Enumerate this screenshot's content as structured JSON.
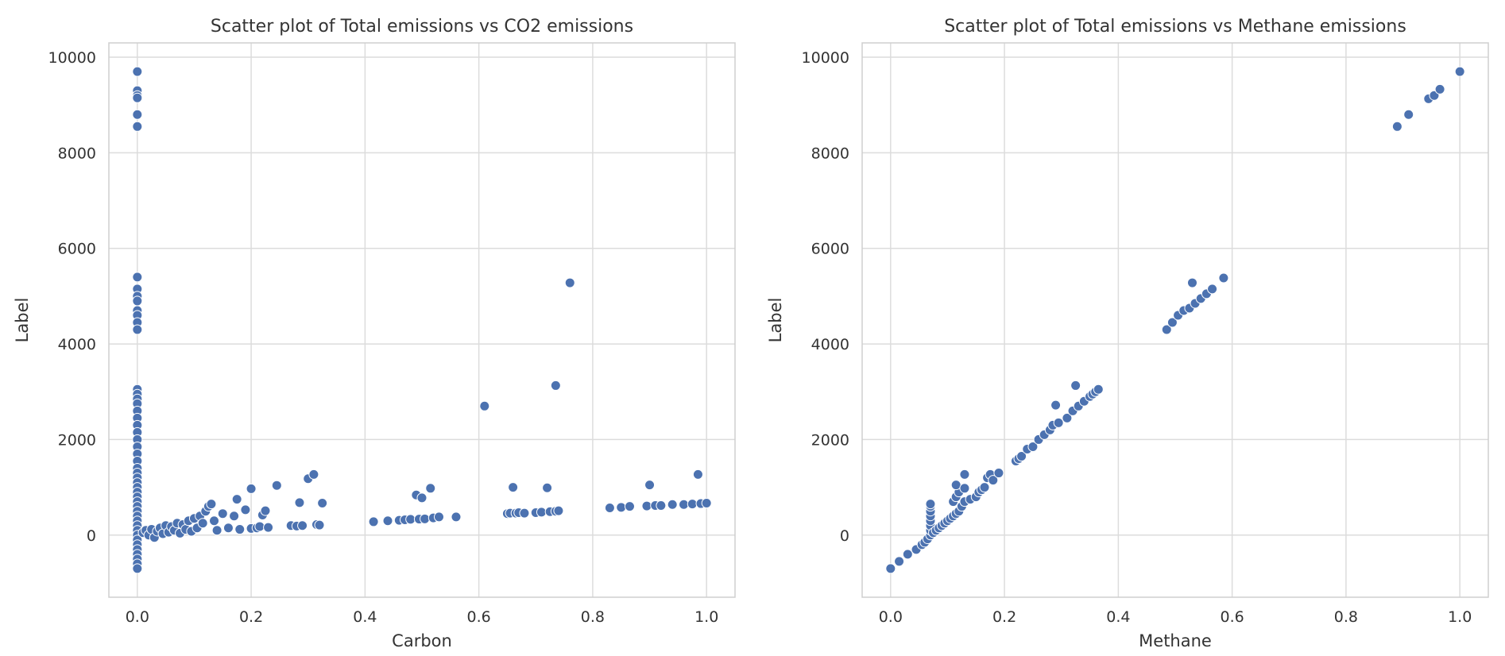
{
  "chart_data": [
    {
      "type": "scatter",
      "title": "Scatter plot of Total emissions vs CO2 emissions",
      "xlabel": "Carbon",
      "ylabel": "Label",
      "xlim": [
        -0.05,
        1.05
      ],
      "ylim": [
        -1300,
        10300
      ],
      "xticks": [
        0.0,
        0.2,
        0.4,
        0.6,
        0.8,
        1.0
      ],
      "xtick_labels": [
        "0.0",
        "0.2",
        "0.4",
        "0.6",
        "0.8",
        "1.0"
      ],
      "yticks": [
        0,
        2000,
        4000,
        6000,
        8000,
        10000
      ],
      "ytick_labels": [
        "0",
        "2000",
        "4000",
        "6000",
        "8000",
        "10000"
      ],
      "grid": true,
      "color": "#4c72b0",
      "points": [
        [
          0.0,
          9700
        ],
        [
          0.0,
          9300
        ],
        [
          0.0,
          9200
        ],
        [
          0.0,
          9150
        ],
        [
          0.0,
          8800
        ],
        [
          0.0,
          8550
        ],
        [
          0.0,
          5400
        ],
        [
          0.0,
          5150
        ],
        [
          0.0,
          5000
        ],
        [
          0.0,
          4900
        ],
        [
          0.0,
          4700
        ],
        [
          0.0,
          4600
        ],
        [
          0.0,
          4450
        ],
        [
          0.0,
          4300
        ],
        [
          0.0,
          3050
        ],
        [
          0.0,
          2950
        ],
        [
          0.0,
          2850
        ],
        [
          0.0,
          2750
        ],
        [
          0.0,
          2600
        ],
        [
          0.0,
          2450
        ],
        [
          0.0,
          2300
        ],
        [
          0.0,
          2150
        ],
        [
          0.0,
          2000
        ],
        [
          0.0,
          1850
        ],
        [
          0.0,
          1700
        ],
        [
          0.0,
          1550
        ],
        [
          0.0,
          1400
        ],
        [
          0.0,
          1300
        ],
        [
          0.0,
          1200
        ],
        [
          0.0,
          1100
        ],
        [
          0.0,
          1000
        ],
        [
          0.0,
          900
        ],
        [
          0.0,
          800
        ],
        [
          0.0,
          700
        ],
        [
          0.0,
          600
        ],
        [
          0.0,
          500
        ],
        [
          0.0,
          400
        ],
        [
          0.0,
          300
        ],
        [
          0.0,
          200
        ],
        [
          0.0,
          100
        ],
        [
          0.0,
          0
        ],
        [
          0.0,
          -100
        ],
        [
          0.0,
          -200
        ],
        [
          0.0,
          -300
        ],
        [
          0.0,
          -400
        ],
        [
          0.0,
          -500
        ],
        [
          0.0,
          -600
        ],
        [
          0.0,
          -700
        ],
        [
          0.01,
          50
        ],
        [
          0.015,
          100
        ],
        [
          0.02,
          0
        ],
        [
          0.025,
          120
        ],
        [
          0.03,
          -50
        ],
        [
          0.035,
          80
        ],
        [
          0.04,
          150
        ],
        [
          0.045,
          30
        ],
        [
          0.05,
          200
        ],
        [
          0.055,
          60
        ],
        [
          0.06,
          180
        ],
        [
          0.065,
          100
        ],
        [
          0.07,
          250
        ],
        [
          0.075,
          40
        ],
        [
          0.08,
          220
        ],
        [
          0.085,
          120
        ],
        [
          0.09,
          300
        ],
        [
          0.095,
          80
        ],
        [
          0.1,
          350
        ],
        [
          0.105,
          150
        ],
        [
          0.11,
          400
        ],
        [
          0.115,
          250
        ],
        [
          0.12,
          500
        ],
        [
          0.125,
          600
        ],
        [
          0.13,
          650
        ],
        [
          0.135,
          300
        ],
        [
          0.14,
          100
        ],
        [
          0.15,
          450
        ],
        [
          0.16,
          150
        ],
        [
          0.17,
          400
        ],
        [
          0.175,
          750
        ],
        [
          0.18,
          120
        ],
        [
          0.19,
          530
        ],
        [
          0.2,
          970
        ],
        [
          0.2,
          140
        ],
        [
          0.21,
          150
        ],
        [
          0.215,
          180
        ],
        [
          0.22,
          420
        ],
        [
          0.225,
          510
        ],
        [
          0.23,
          160
        ],
        [
          0.245,
          1040
        ],
        [
          0.27,
          200
        ],
        [
          0.28,
          190
        ],
        [
          0.285,
          680
        ],
        [
          0.29,
          200
        ],
        [
          0.3,
          1180
        ],
        [
          0.31,
          1270
        ],
        [
          0.315,
          220
        ],
        [
          0.32,
          210
        ],
        [
          0.325,
          670
        ],
        [
          0.415,
          280
        ],
        [
          0.44,
          300
        ],
        [
          0.46,
          310
        ],
        [
          0.47,
          320
        ],
        [
          0.48,
          330
        ],
        [
          0.49,
          840
        ],
        [
          0.495,
          335
        ],
        [
          0.5,
          780
        ],
        [
          0.505,
          340
        ],
        [
          0.515,
          980
        ],
        [
          0.52,
          360
        ],
        [
          0.53,
          380
        ],
        [
          0.56,
          380
        ],
        [
          0.61,
          2700
        ],
        [
          0.65,
          450
        ],
        [
          0.655,
          460
        ],
        [
          0.66,
          1000
        ],
        [
          0.665,
          460
        ],
        [
          0.67,
          470
        ],
        [
          0.68,
          460
        ],
        [
          0.7,
          470
        ],
        [
          0.71,
          480
        ],
        [
          0.72,
          990
        ],
        [
          0.725,
          490
        ],
        [
          0.735,
          500
        ],
        [
          0.735,
          3130
        ],
        [
          0.74,
          510
        ],
        [
          0.76,
          5280
        ],
        [
          0.83,
          570
        ],
        [
          0.85,
          580
        ],
        [
          0.865,
          600
        ],
        [
          0.895,
          610
        ],
        [
          0.9,
          1050
        ],
        [
          0.91,
          620
        ],
        [
          0.92,
          620
        ],
        [
          0.94,
          640
        ],
        [
          0.96,
          640
        ],
        [
          0.975,
          650
        ],
        [
          0.985,
          1270
        ],
        [
          0.99,
          660
        ],
        [
          1.0,
          670
        ]
      ]
    },
    {
      "type": "scatter",
      "title": "Scatter plot of Total emissions vs Methane emissions",
      "xlabel": "Methane",
      "ylabel": "Label",
      "xlim": [
        -0.05,
        1.05
      ],
      "ylim": [
        -1300,
        10300
      ],
      "xticks": [
        0.0,
        0.2,
        0.4,
        0.6,
        0.8,
        1.0
      ],
      "xtick_labels": [
        "0.0",
        "0.2",
        "0.4",
        "0.6",
        "0.8",
        "1.0"
      ],
      "yticks": [
        0,
        2000,
        4000,
        6000,
        8000,
        10000
      ],
      "ytick_labels": [
        "0",
        "2000",
        "4000",
        "6000",
        "8000",
        "10000"
      ],
      "grid": true,
      "color": "#4c72b0",
      "points": [
        [
          0.0,
          -700
        ],
        [
          0.015,
          -550
        ],
        [
          0.03,
          -400
        ],
        [
          0.045,
          -300
        ],
        [
          0.055,
          -200
        ],
        [
          0.06,
          -150
        ],
        [
          0.065,
          -80
        ],
        [
          0.07,
          0
        ],
        [
          0.07,
          100
        ],
        [
          0.07,
          200
        ],
        [
          0.07,
          300
        ],
        [
          0.07,
          400
        ],
        [
          0.07,
          500
        ],
        [
          0.07,
          600
        ],
        [
          0.07,
          650
        ],
        [
          0.075,
          50
        ],
        [
          0.08,
          100
        ],
        [
          0.085,
          150
        ],
        [
          0.09,
          200
        ],
        [
          0.095,
          250
        ],
        [
          0.1,
          300
        ],
        [
          0.105,
          350
        ],
        [
          0.11,
          400
        ],
        [
          0.115,
          450
        ],
        [
          0.12,
          500
        ],
        [
          0.11,
          700
        ],
        [
          0.115,
          800
        ],
        [
          0.12,
          900
        ],
        [
          0.115,
          1050
        ],
        [
          0.125,
          600
        ],
        [
          0.13,
          700
        ],
        [
          0.13,
          1270
        ],
        [
          0.13,
          980
        ],
        [
          0.14,
          750
        ],
        [
          0.15,
          800
        ],
        [
          0.155,
          900
        ],
        [
          0.16,
          950
        ],
        [
          0.165,
          1000
        ],
        [
          0.17,
          1200
        ],
        [
          0.175,
          1270
        ],
        [
          0.18,
          1150
        ],
        [
          0.19,
          1300
        ],
        [
          0.22,
          1550
        ],
        [
          0.225,
          1600
        ],
        [
          0.23,
          1650
        ],
        [
          0.24,
          1800
        ],
        [
          0.25,
          1850
        ],
        [
          0.26,
          2000
        ],
        [
          0.27,
          2100
        ],
        [
          0.28,
          2200
        ],
        [
          0.285,
          2300
        ],
        [
          0.29,
          2720
        ],
        [
          0.295,
          2350
        ],
        [
          0.31,
          2450
        ],
        [
          0.32,
          2600
        ],
        [
          0.325,
          3130
        ],
        [
          0.33,
          2700
        ],
        [
          0.34,
          2800
        ],
        [
          0.35,
          2900
        ],
        [
          0.355,
          2950
        ],
        [
          0.36,
          3000
        ],
        [
          0.365,
          3050
        ],
        [
          0.485,
          4300
        ],
        [
          0.495,
          4450
        ],
        [
          0.505,
          4600
        ],
        [
          0.515,
          4700
        ],
        [
          0.525,
          4750
        ],
        [
          0.53,
          5280
        ],
        [
          0.535,
          4850
        ],
        [
          0.545,
          4950
        ],
        [
          0.555,
          5050
        ],
        [
          0.565,
          5150
        ],
        [
          0.585,
          5380
        ],
        [
          0.89,
          8550
        ],
        [
          0.91,
          8800
        ],
        [
          0.945,
          9130
        ],
        [
          0.955,
          9200
        ],
        [
          0.965,
          9330
        ],
        [
          1.0,
          9700
        ]
      ]
    }
  ]
}
